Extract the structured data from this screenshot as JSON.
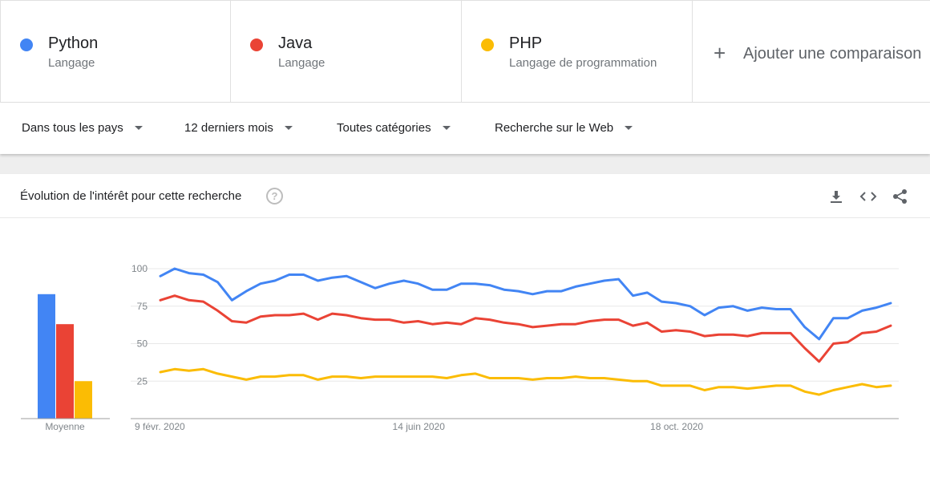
{
  "terms": [
    {
      "name": "Python",
      "type": "Langage",
      "color": "#4285f4"
    },
    {
      "name": "Java",
      "type": "Langage",
      "color": "#ea4335"
    },
    {
      "name": "PHP",
      "type": "Langage de programmation",
      "color": "#fbbc04"
    }
  ],
  "add_comparison": {
    "icon": "plus-icon",
    "label": "Ajouter une comparaison"
  },
  "filters": [
    {
      "label": "Dans tous les pays"
    },
    {
      "label": "12 derniers mois"
    },
    {
      "label": "Toutes catégories"
    },
    {
      "label": "Recherche sur le Web"
    }
  ],
  "card": {
    "title": "Évolution de l'intérêt pour cette recherche",
    "help_icon": "?",
    "actions": [
      "download-icon",
      "embed-code-icon",
      "share-icon"
    ]
  },
  "chart_data": {
    "type": "line",
    "y_ticks": [
      25,
      50,
      75,
      100
    ],
    "ylim": [
      0,
      100
    ],
    "grid": true,
    "x_tick_labels": [
      "9 févr. 2020",
      "14 juin 2020",
      "18 oct. 2020"
    ],
    "x_tick_indices": [
      0,
      18,
      36
    ],
    "average": {
      "label": "Moyenne",
      "values": [
        83,
        63,
        25
      ]
    },
    "series": [
      {
        "name": "Python",
        "color": "#4285f4",
        "values": [
          95,
          100,
          97,
          96,
          91,
          79,
          85,
          90,
          92,
          96,
          96,
          92,
          94,
          95,
          91,
          87,
          90,
          92,
          90,
          86,
          86,
          90,
          90,
          89,
          86,
          85,
          83,
          85,
          85,
          88,
          90,
          92,
          93,
          82,
          84,
          78,
          77,
          75,
          69,
          74,
          75,
          72,
          74,
          73,
          73,
          61,
          53,
          67,
          67,
          72,
          74,
          77
        ]
      },
      {
        "name": "Java",
        "color": "#ea4335",
        "values": [
          79,
          82,
          79,
          78,
          72,
          65,
          64,
          68,
          69,
          69,
          70,
          66,
          70,
          69,
          67,
          66,
          66,
          64,
          65,
          63,
          64,
          63,
          67,
          66,
          64,
          63,
          61,
          62,
          63,
          63,
          65,
          66,
          66,
          62,
          64,
          58,
          59,
          58,
          55,
          56,
          56,
          55,
          57,
          57,
          57,
          47,
          38,
          50,
          51,
          57,
          58,
          62
        ]
      },
      {
        "name": "PHP",
        "color": "#fbbc04",
        "values": [
          31,
          33,
          32,
          33,
          30,
          28,
          26,
          28,
          28,
          29,
          29,
          26,
          28,
          28,
          27,
          28,
          28,
          28,
          28,
          28,
          27,
          29,
          30,
          27,
          27,
          27,
          26,
          27,
          27,
          28,
          27,
          27,
          26,
          25,
          25,
          22,
          22,
          22,
          19,
          21,
          21,
          20,
          21,
          22,
          22,
          18,
          16,
          19,
          21,
          23,
          21,
          22
        ]
      }
    ]
  }
}
